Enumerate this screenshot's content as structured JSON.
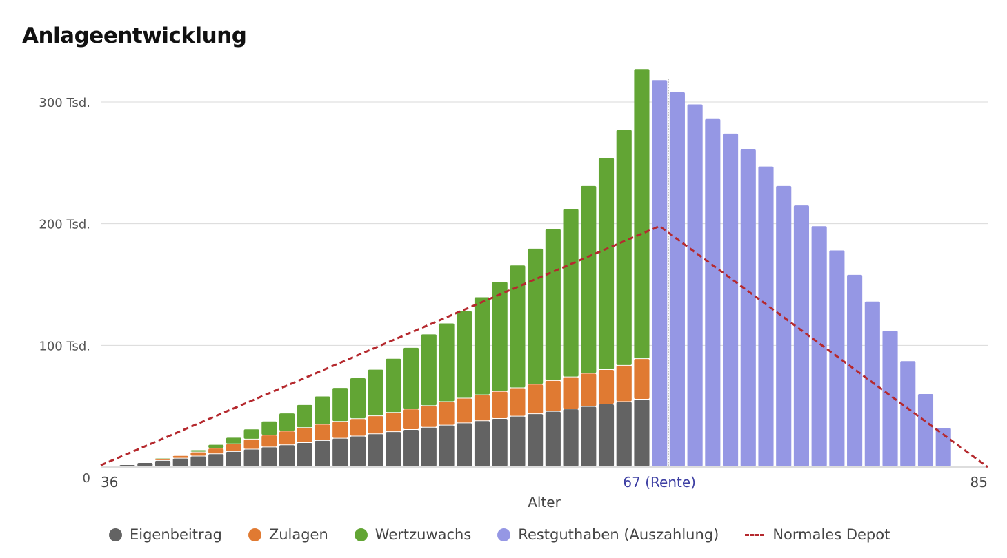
{
  "title": "Anlageentwicklung",
  "chart_data": {
    "type": "bar",
    "stacked": true,
    "title": "Anlageentwicklung",
    "xlabel": "Alter",
    "ylabel": "",
    "ylim": [
      0,
      330000
    ],
    "yticks": [
      {
        "value": 0,
        "label": "0"
      },
      {
        "value": 100000,
        "label": "100 Tsd."
      },
      {
        "value": 200000,
        "label": "200 Tsd."
      },
      {
        "value": 300000,
        "label": "300 Tsd."
      }
    ],
    "xticks": [
      {
        "value": 36,
        "label": "36"
      },
      {
        "value": 67,
        "label": "67 (Rente)"
      },
      {
        "value": 85,
        "label": "85"
      }
    ],
    "retirement_age": 67,
    "grid": true,
    "legend_position": "bottom",
    "categories": [
      36,
      37,
      38,
      39,
      40,
      41,
      42,
      43,
      44,
      45,
      46,
      47,
      48,
      49,
      50,
      51,
      52,
      53,
      54,
      55,
      56,
      57,
      58,
      59,
      60,
      61,
      62,
      63,
      64,
      65,
      66,
      67,
      68,
      69,
      70,
      71,
      72,
      73,
      74,
      75,
      76,
      77,
      78,
      79,
      80,
      81,
      82,
      83,
      84,
      85
    ],
    "series": [
      {
        "name": "Eigenbeitrag",
        "color": "#636363",
        "kind": "bar",
        "values": [
          0,
          1700,
          3400,
          5200,
          7000,
          8800,
          10600,
          12500,
          14400,
          16200,
          18000,
          19800,
          21600,
          23400,
          25200,
          27000,
          28800,
          30600,
          32400,
          34200,
          36000,
          37800,
          39600,
          41500,
          43500,
          45500,
          47500,
          49500,
          51500,
          53500,
          55500,
          null,
          null,
          null,
          null,
          null,
          null,
          null,
          null,
          null,
          null,
          null,
          null,
          null,
          null,
          null,
          null,
          null,
          null,
          null
        ]
      },
      {
        "name": "Zulagen",
        "color": "#e07a32",
        "kind": "bar",
        "values": [
          0,
          300,
          800,
          1300,
          2200,
          3300,
          4600,
          6300,
          8300,
          9800,
          11300,
          12300,
          13300,
          13800,
          14300,
          14800,
          15800,
          16800,
          17800,
          19300,
          20300,
          21300,
          22300,
          23300,
          24300,
          25300,
          26300,
          27300,
          28300,
          29800,
          33300,
          null,
          null,
          null,
          null,
          null,
          null,
          null,
          null,
          null,
          null,
          null,
          null,
          null,
          null,
          null,
          null,
          null,
          null,
          null
        ]
      },
      {
        "name": "Wertzuwachs",
        "color": "#62a534",
        "kind": "bar",
        "values": [
          0,
          0,
          300,
          800,
          1000,
          1800,
          3100,
          5300,
          8300,
          11500,
          14800,
          18900,
          23100,
          27800,
          33500,
          38200,
          44400,
          50600,
          58800,
          64500,
          71700,
          80400,
          90100,
          100900,
          111700,
          124700,
          138200,
          154200,
          174200,
          193700,
          238200,
          null,
          null,
          null,
          null,
          null,
          null,
          null,
          null,
          null,
          null,
          null,
          null,
          null,
          null,
          null,
          null,
          null,
          null,
          null
        ]
      },
      {
        "name": "Restguthaben (Auszahlung)",
        "color": "#9597e4",
        "kind": "bar",
        "values": [
          null,
          null,
          null,
          null,
          null,
          null,
          null,
          null,
          null,
          null,
          null,
          null,
          null,
          null,
          null,
          null,
          null,
          null,
          null,
          null,
          null,
          null,
          null,
          null,
          null,
          null,
          null,
          null,
          null,
          null,
          null,
          318000,
          308000,
          298000,
          286000,
          274000,
          261000,
          247000,
          231000,
          215000,
          198000,
          178000,
          158000,
          136000,
          112000,
          87000,
          60000,
          32000,
          null,
          null
        ]
      },
      {
        "name": "Normales Depot",
        "color": "#b5292e",
        "kind": "line",
        "x": [
          35.5,
          67,
          85.5
        ],
        "values": [
          1500,
          198000,
          0
        ]
      }
    ]
  },
  "legend": [
    {
      "label": "Eigenbeitrag",
      "color": "#636363",
      "kind": "dot"
    },
    {
      "label": "Zulagen",
      "color": "#e07a32",
      "kind": "dot"
    },
    {
      "label": "Wertzuwachs",
      "color": "#62a534",
      "kind": "dot"
    },
    {
      "label": "Restguthaben (Auszahlung)",
      "color": "#9597e4",
      "kind": "dot"
    },
    {
      "label": "Normales Depot",
      "color": "#b5292e",
      "kind": "dash"
    }
  ]
}
